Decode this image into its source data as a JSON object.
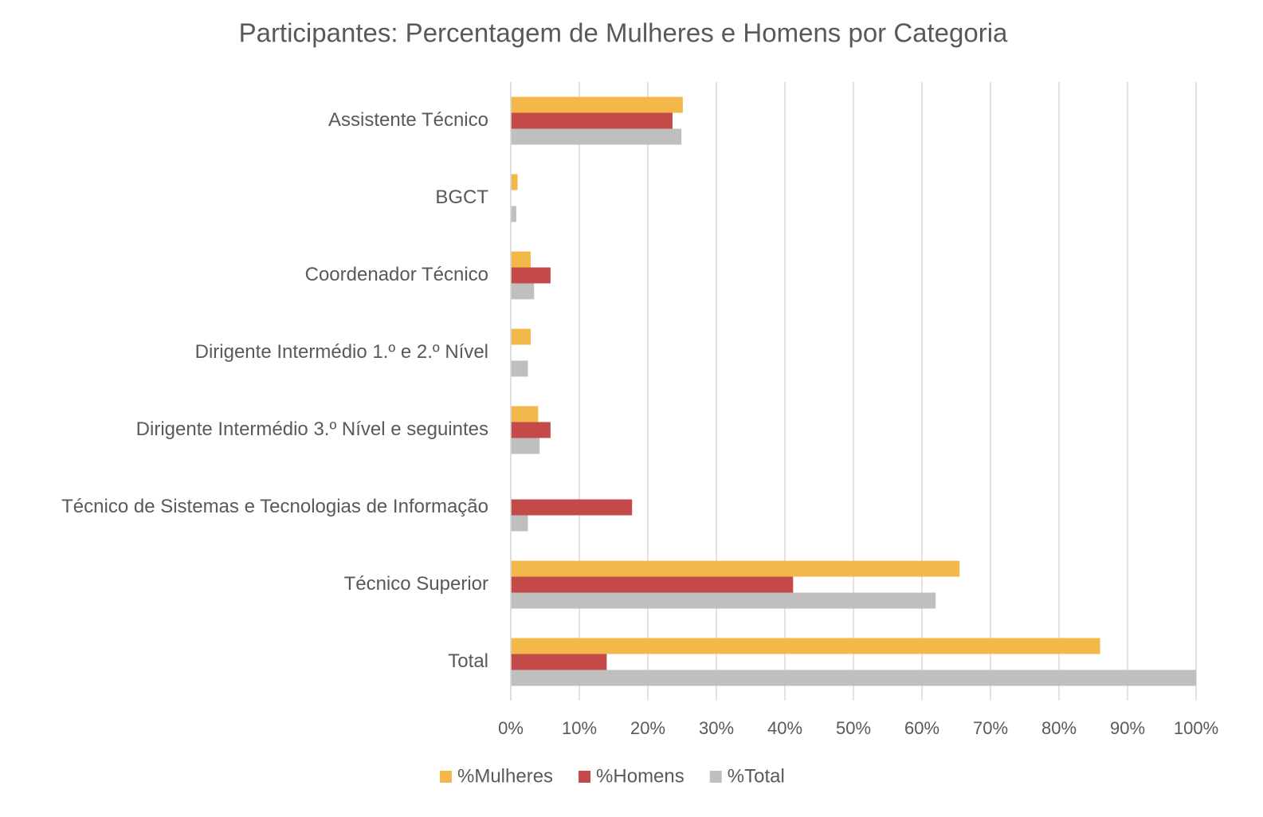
{
  "chart_data": {
    "type": "hbar",
    "title": "Participantes: Percentagem de Mulheres e Homens por Categoria",
    "categories": [
      "Assistente Técnico",
      "BGCT",
      "Coordenador Técnico",
      "Dirigente Intermédio 1.º e 2.º Nível",
      "Dirigente Intermédio 3.º Nível e seguintes",
      "Técnico de Sistemas e Tecnologias de Informação",
      "Técnico Superior",
      "Total"
    ],
    "series": [
      {
        "name": "%Mulheres",
        "color": "#f2b94a",
        "values": [
          25.1,
          1.0,
          2.9,
          2.9,
          4.0,
          0,
          65.5,
          86.0
        ]
      },
      {
        "name": "%Homens",
        "color": "#c44a4a",
        "values": [
          23.6,
          0,
          5.8,
          0,
          5.8,
          17.7,
          41.2,
          14.0
        ]
      },
      {
        "name": "%Total",
        "color": "#bfbfbf",
        "values": [
          24.9,
          0.8,
          3.4,
          2.5,
          4.2,
          2.5,
          62.0,
          100
        ]
      }
    ],
    "xlim": [
      0,
      100
    ],
    "xticks": [
      {
        "value": 0,
        "label": "0%"
      },
      {
        "value": 10,
        "label": "10%"
      },
      {
        "value": 20,
        "label": "20%"
      },
      {
        "value": 30,
        "label": "30%"
      },
      {
        "value": 40,
        "label": "40%"
      },
      {
        "value": 50,
        "label": "50%"
      },
      {
        "value": 60,
        "label": "60%"
      },
      {
        "value": 70,
        "label": "70%"
      },
      {
        "value": 80,
        "label": "80%"
      },
      {
        "value": 90,
        "label": "90%"
      },
      {
        "value": 100,
        "label": "100%"
      }
    ],
    "grid": true,
    "legend": "bottom"
  }
}
